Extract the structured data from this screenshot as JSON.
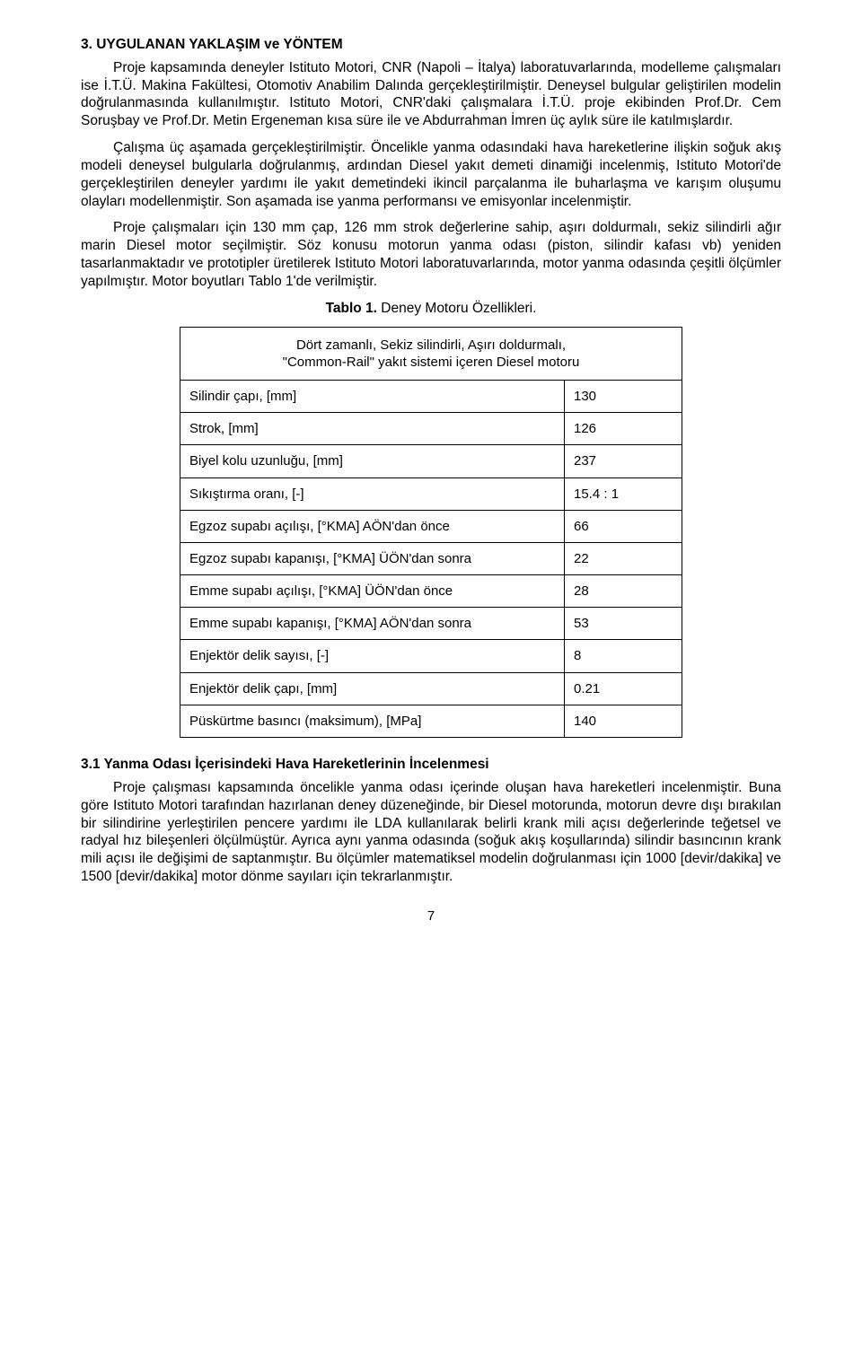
{
  "section_heading": "3. UYGULANAN YAKLAŞIM ve YÖNTEM",
  "paragraphs": {
    "p1": "Proje kapsamında deneyler Istituto Motori, CNR (Napoli – İtalya) laboratuvarlarında, modelleme çalışmaları ise İ.T.Ü. Makina Fakültesi, Otomotiv Anabilim Dalında gerçekleştirilmiştir. Deneysel bulgular geliştirilen modelin doğrulanmasında kullanılmıştır. Istituto Motori, CNR'daki çalışmalara İ.T.Ü. proje ekibinden Prof.Dr. Cem Soruşbay ve Prof.Dr. Metin Ergeneman kısa süre ile ve Abdurrahman İmren üç aylık süre ile katılmışlardır.",
    "p2": "Çalışma üç aşamada gerçekleştirilmiştir. Öncelikle yanma odasındaki hava hareketlerine ilişkin soğuk akış modeli deneysel bulgularla doğrulanmış, ardından Diesel yakıt demeti dinamiği incelenmiş, Istituto Motori'de gerçekleştirilen deneyler yardımı ile yakıt demetindeki ikincil parçalanma ile buharlaşma ve karışım oluşumu olayları modellenmiştir. Son aşamada ise yanma performansı ve emisyonlar incelenmiştir.",
    "p3": "Proje çalışmaları için 130 mm çap, 126 mm strok değerlerine sahip, aşırı doldurmalı, sekiz silindirli ağır marin Diesel motor seçilmiştir. Söz konusu motorun yanma odası (piston, silindir kafası vb) yeniden tasarlanmaktadır ve prototipler üretilerek Istituto Motori laboratuvarlarında, motor yanma odasında çeşitli ölçümler yapılmıştır. Motor boyutları Tablo 1'de verilmiştir.",
    "p4": "Proje çalışması kapsamında öncelikle yanma odası içerinde oluşan hava hareketleri incelenmiştir. Buna göre Istituto Motori tarafından hazırlanan deney düzeneğinde, bir Diesel motorunda, motorun devre dışı bırakılan bir silindirine yerleştirilen pencere yardımı ile LDA kullanılarak belirli krank mili açısı değerlerinde teğetsel ve radyal hız bileşenleri ölçülmüştür. Ayrıca aynı yanma odasında (soğuk akış koşullarında) silindir basıncının krank mili açısı ile değişimi de saptanmıştır. Bu ölçümler matematiksel modelin doğrulanması için 1000 [devir/dakika] ve 1500 [devir/dakika] motor dönme sayıları için tekrarlanmıştır."
  },
  "table_caption_bold": "Tablo 1.",
  "table_caption_rest": " Deney Motoru Özellikleri.",
  "table_header_line1": "Dört zamanlı, Sekiz silindirli, Aşırı doldurmalı,",
  "table_header_line2": "\"Common-Rail\" yakıt sistemi içeren Diesel motoru",
  "table_rows": [
    {
      "label": "Silindir çapı,  [mm]",
      "value": "130"
    },
    {
      "label": "Strok,  [mm]",
      "value": "126"
    },
    {
      "label": "Biyel kolu uzunluğu,  [mm]",
      "value": "237"
    },
    {
      "label": "Sıkıştırma oranı,  [-]",
      "value": "15.4 : 1"
    },
    {
      "label": "Egzoz supabı açılışı,  [°KMA] AÖN'dan önce",
      "value": "66"
    },
    {
      "label": "Egzoz supabı kapanışı,  [°KMA] ÜÖN'dan sonra",
      "value": "22"
    },
    {
      "label": "Emme supabı açılışı,  [°KMA] ÜÖN'dan önce",
      "value": "28"
    },
    {
      "label": "Emme supabı kapanışı,  [°KMA] AÖN'dan sonra",
      "value": "53"
    },
    {
      "label": "Enjektör delik sayısı,  [-]",
      "value": "8"
    },
    {
      "label": "Enjektör delik çapı,  [mm]",
      "value": "0.21"
    },
    {
      "label": "Püskürtme basıncı (maksimum),  [MPa]",
      "value": "140"
    }
  ],
  "sub_heading": "3.1 Yanma Odası İçerisindeki Hava Hareketlerinin İncelenmesi",
  "page_number": "7"
}
